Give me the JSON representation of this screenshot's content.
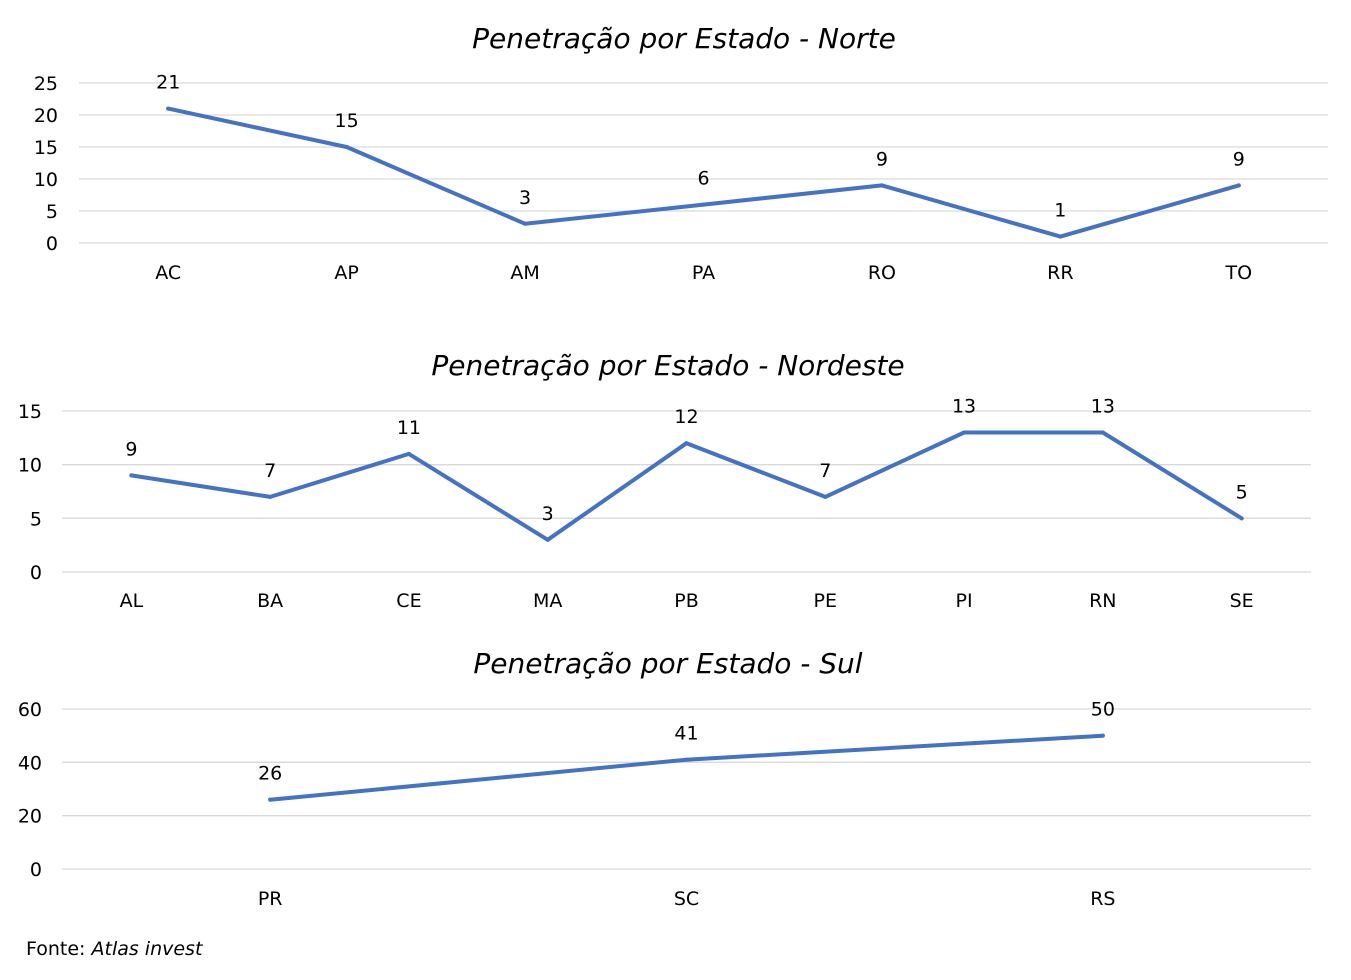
{
  "chart_data": [
    {
      "type": "line",
      "title": "Penetração por Estado - Norte",
      "categories": [
        "AC",
        "AP",
        "AM",
        "PA",
        "RO",
        "RR",
        "TO"
      ],
      "values": [
        21,
        15,
        3,
        6,
        9,
        1,
        9
      ],
      "yticks": [
        "0",
        "5",
        "10",
        "15",
        "20",
        "25"
      ],
      "ylim": [
        0,
        25
      ],
      "grid": true,
      "data_labels": true
    },
    {
      "type": "line",
      "title": "Penetração por Estado - Nordeste",
      "categories": [
        "AL",
        "BA",
        "CE",
        "MA",
        "PB",
        "PE",
        "PI",
        "RN",
        "SE"
      ],
      "values": [
        9,
        7,
        11,
        3,
        12,
        7,
        13,
        13,
        5
      ],
      "yticks": [
        "0",
        "5",
        "10",
        "15"
      ],
      "ylim": [
        0,
        15
      ],
      "grid": true,
      "data_labels": true
    },
    {
      "type": "line",
      "title": "Penetração por Estado - Sul",
      "categories": [
        "PR",
        "SC",
        "RS"
      ],
      "values": [
        26,
        41,
        50
      ],
      "yticks": [
        "0",
        "20",
        "40",
        "60"
      ],
      "ylim": [
        0,
        60
      ],
      "grid": true,
      "data_labels": true
    }
  ],
  "colors": {
    "line": "#4472C4",
    "grid": "#D9D9D9"
  },
  "source": {
    "label": "Fonte: ",
    "name": "Atlas invest"
  }
}
